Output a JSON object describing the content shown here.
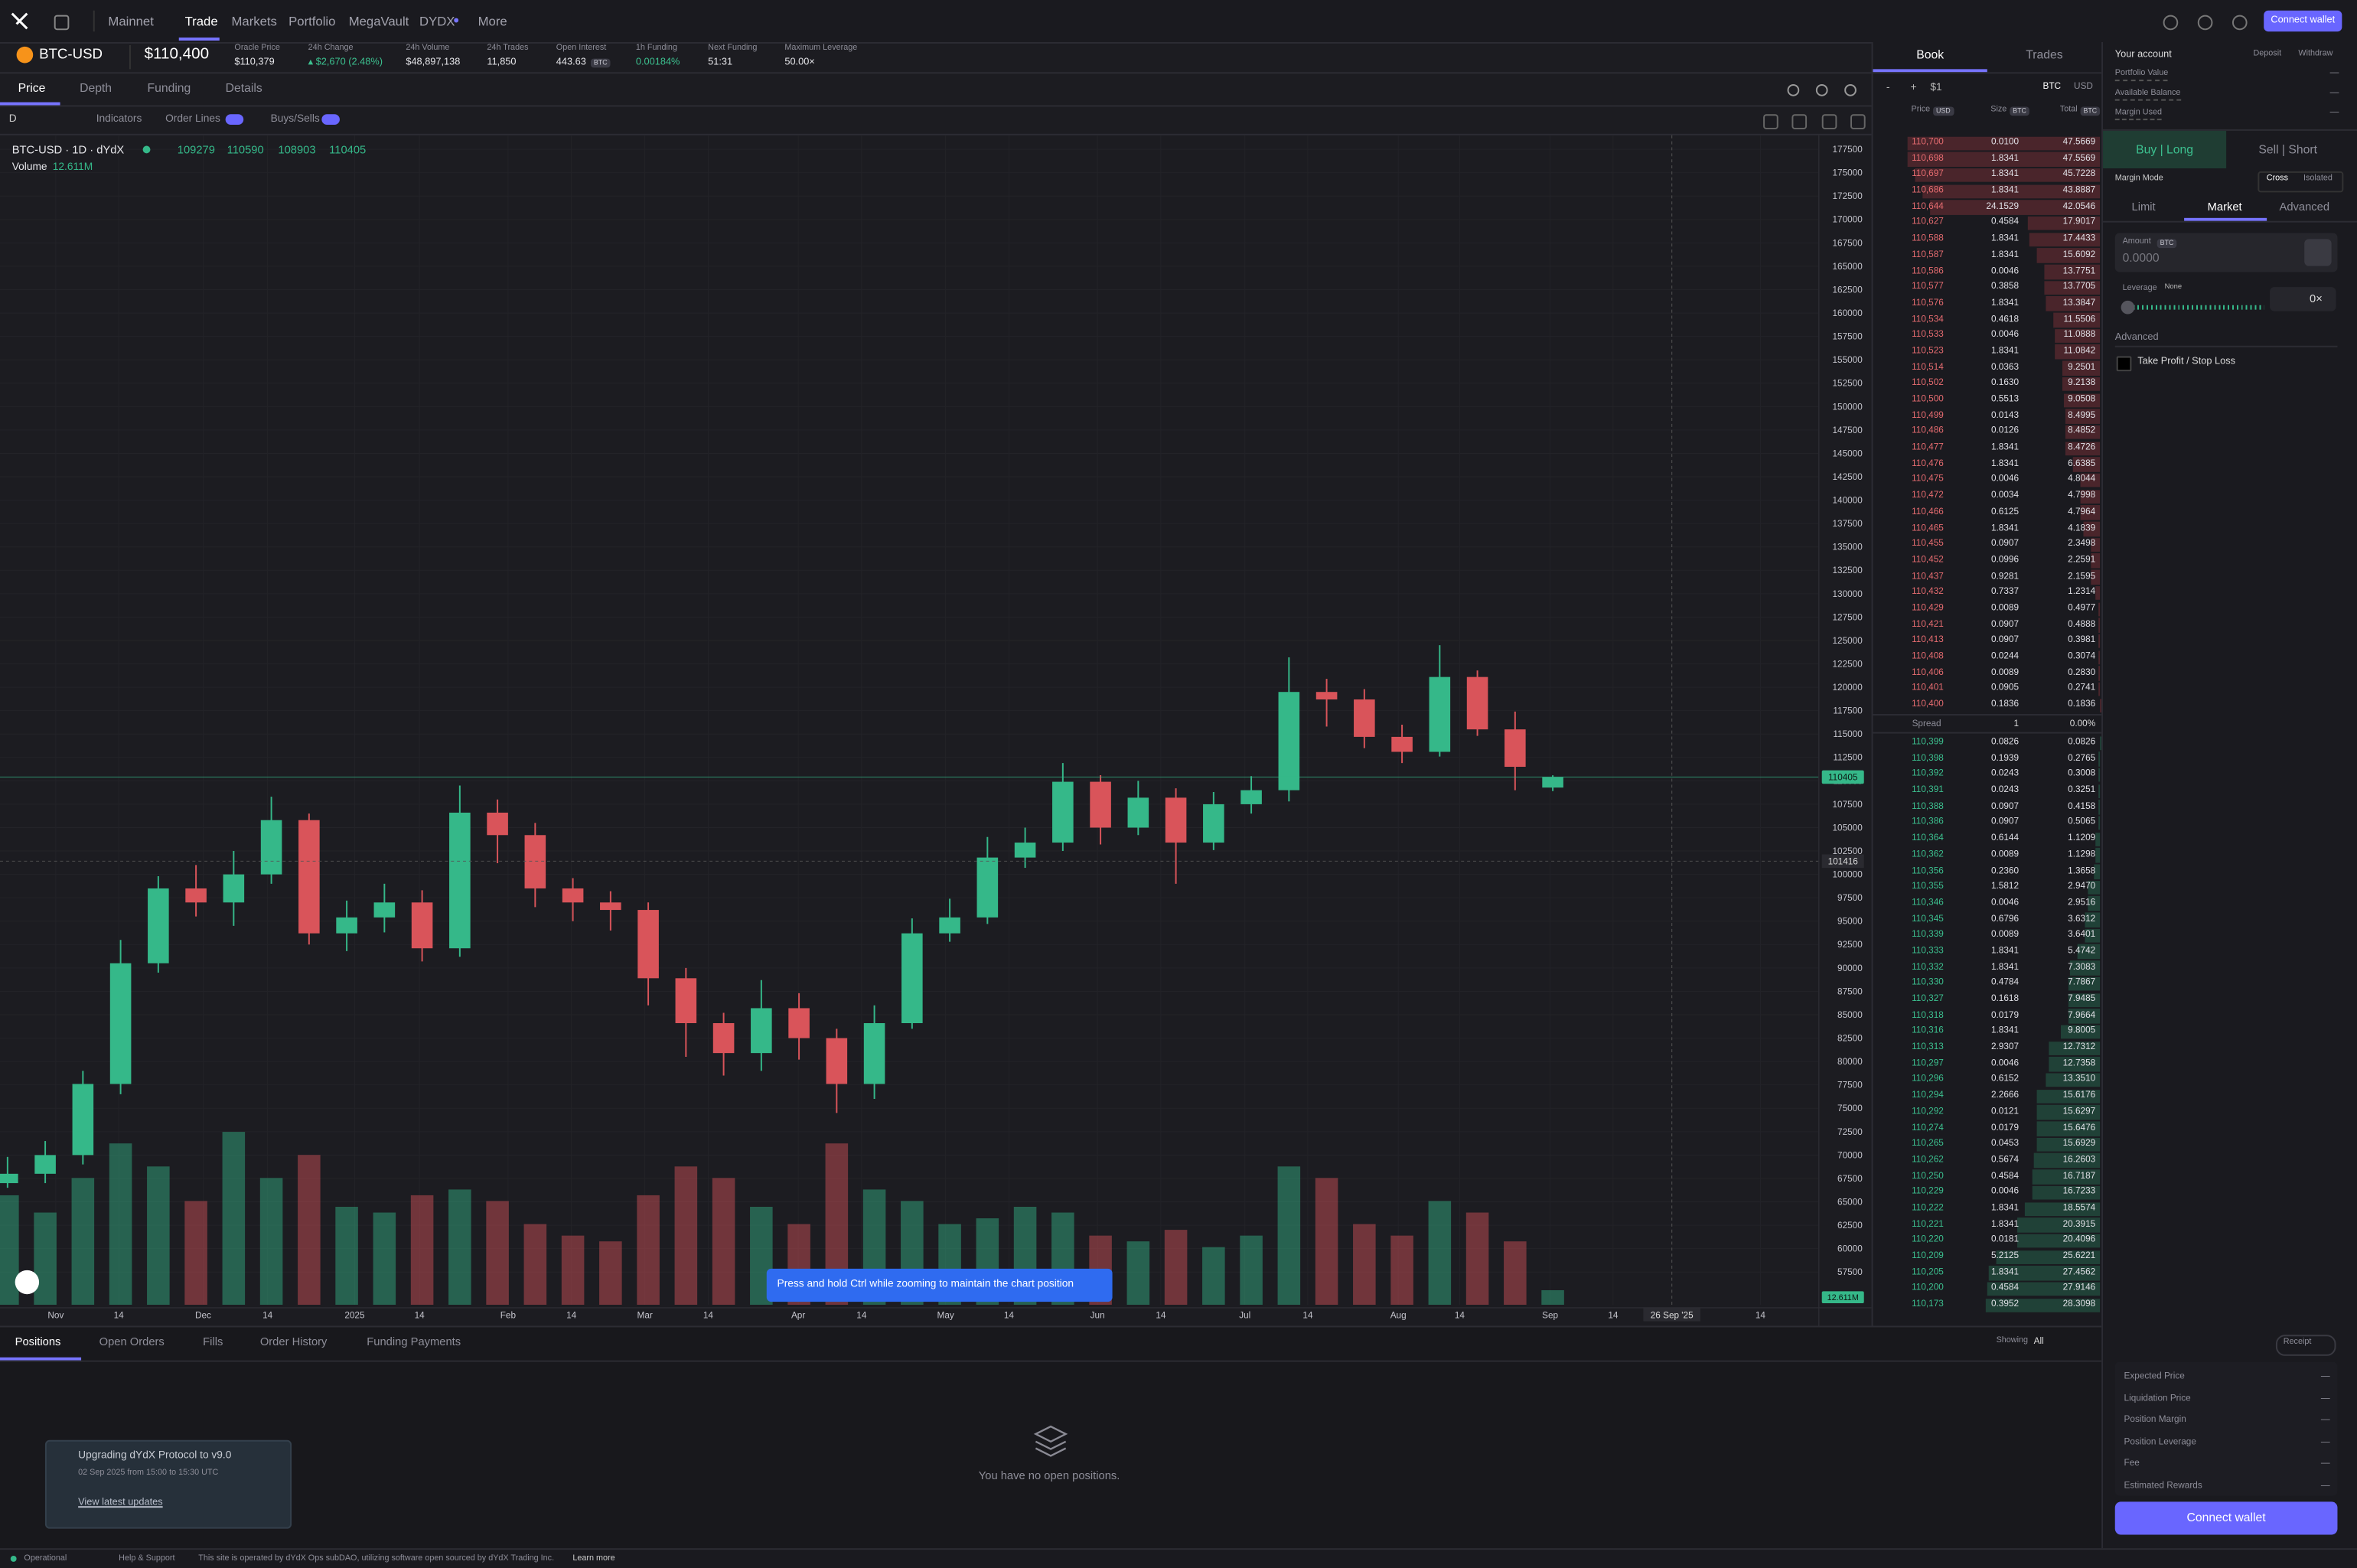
{
  "nav": {
    "items": [
      "Mainnet",
      "Trade",
      "Markets",
      "Portfolio",
      "MegaVault",
      "DYDX",
      "More"
    ],
    "connect": "Connect wallet"
  },
  "market": {
    "symbol": "BTC-USD",
    "price": "$110,400",
    "stats": [
      {
        "label": "Oracle Price",
        "value": "$110,379"
      },
      {
        "label": "24h Change",
        "value": "▴ $2,670 (2.48%)"
      },
      {
        "label": "24h Volume",
        "value": "$48,897,138"
      },
      {
        "label": "24h Trades",
        "value": "11,850"
      },
      {
        "label": "Open Interest",
        "value": "443.63"
      },
      {
        "label": "1h Funding",
        "value": "0.00184%"
      },
      {
        "label": "Next Funding",
        "value": "51:31"
      },
      {
        "label": "Maximum Leverage",
        "value": "50.00×"
      }
    ],
    "open_interest_unit": "BTC"
  },
  "chart_tabs": [
    "Price",
    "Depth",
    "Funding",
    "Details"
  ],
  "toolbar": {
    "interval": "D",
    "indicators": "Indicators",
    "order_lines": "Order Lines",
    "buys_sells": "Buys/Sells"
  },
  "chart_data": {
    "type": "candlestick",
    "title": "BTC-USD · 1D · dYdX",
    "open": [
      67000,
      68000,
      70000,
      77600,
      90500,
      98500,
      97000,
      100000,
      105800,
      93700,
      95400,
      97000,
      92100,
      106600,
      104200,
      98500,
      97000,
      96200,
      88900,
      84100,
      80900,
      85700,
      82500,
      77600,
      84100,
      93700,
      95400,
      101800,
      103400,
      109900,
      105000,
      108200,
      103400,
      107500,
      109000,
      119500,
      118700,
      114700,
      113100,
      121100,
      115500,
      109279
    ],
    "high": [
      69800,
      71500,
      79000,
      93000,
      99800,
      101000,
      102500,
      108300,
      106500,
      97200,
      99000,
      98300,
      109500,
      108000,
      105500,
      99600,
      98200,
      97000,
      90000,
      85200,
      88700,
      87300,
      83500,
      86000,
      95300,
      97400,
      104000,
      105000,
      111900,
      110600,
      110000,
      109200,
      108800,
      110500,
      123200,
      120900,
      119800,
      116000,
      124500,
      121800,
      117400,
      110590
    ],
    "low": [
      66500,
      67000,
      69000,
      76500,
      89500,
      95500,
      94500,
      99000,
      92500,
      91800,
      93800,
      90700,
      91200,
      101200,
      96500,
      95000,
      94000,
      86000,
      80500,
      78500,
      79000,
      80200,
      74500,
      76000,
      83500,
      92800,
      94700,
      100700,
      102500,
      103200,
      104200,
      99000,
      102600,
      106500,
      107800,
      115800,
      113500,
      111900,
      112600,
      114800,
      109000,
      108903
    ],
    "close": [
      68000,
      70000,
      77600,
      90500,
      98500,
      97000,
      100000,
      105800,
      93700,
      95400,
      97000,
      92100,
      106600,
      104200,
      98500,
      97000,
      96200,
      88900,
      84100,
      80900,
      85700,
      82500,
      77600,
      84100,
      93700,
      95400,
      101800,
      103400,
      109900,
      105000,
      108200,
      103400,
      107500,
      109000,
      119500,
      118700,
      114700,
      113100,
      121100,
      115500,
      111500,
      110405
    ],
    "volume": [
      95,
      80,
      110,
      140,
      120,
      90,
      150,
      110,
      130,
      85,
      80,
      95,
      100,
      90,
      70,
      60,
      55,
      95,
      120,
      110,
      85,
      70,
      140,
      100,
      90,
      70,
      75,
      85,
      80,
      60,
      55,
      65,
      50,
      60,
      120,
      110,
      70,
      60,
      90,
      80,
      55,
      12.611
    ],
    "volume_legend": {
      "label": "Volume",
      "value": "12.611M"
    },
    "up_color": "#35b889",
    "down_color": "#d9545a",
    "grid": true,
    "ylim": [
      54000,
      179000
    ],
    "yticks": [
      177500,
      175000,
      172500,
      170000,
      167500,
      165000,
      162500,
      160000,
      157500,
      155000,
      152500,
      150000,
      147500,
      145000,
      142500,
      140000,
      137500,
      135000,
      132500,
      130000,
      127500,
      125000,
      122500,
      120000,
      117500,
      115000,
      112500,
      110000,
      107500,
      105000,
      102500,
      100000,
      97500,
      95000,
      92500,
      90000,
      87500,
      85000,
      82500,
      80000,
      77500,
      75000,
      72500,
      70000,
      67500,
      65000,
      62500,
      60000,
      57500
    ],
    "xlim": [
      -0.2,
      48.06
    ],
    "xticks": [
      {
        "value": 1.28,
        "label": "Nov"
      },
      {
        "value": 2.95,
        "label": "14"
      },
      {
        "value": 5.19,
        "label": "Dec"
      },
      {
        "value": 6.9,
        "label": "14"
      },
      {
        "value": 9.21,
        "label": "2025"
      },
      {
        "value": 10.93,
        "label": "14"
      },
      {
        "value": 13.28,
        "label": "Feb"
      },
      {
        "value": 14.96,
        "label": "14"
      },
      {
        "value": 16.91,
        "label": "Mar"
      },
      {
        "value": 18.59,
        "label": "14"
      },
      {
        "value": 20.98,
        "label": "Apr"
      },
      {
        "value": 22.66,
        "label": "14"
      },
      {
        "value": 24.89,
        "label": "May"
      },
      {
        "value": 26.57,
        "label": "14"
      },
      {
        "value": 28.92,
        "label": "Jun"
      },
      {
        "value": 30.6,
        "label": "14"
      },
      {
        "value": 32.83,
        "label": "Jul"
      },
      {
        "value": 34.5,
        "label": "14"
      },
      {
        "value": 36.9,
        "label": "Aug"
      },
      {
        "value": 38.53,
        "label": "14"
      },
      {
        "value": 40.93,
        "label": "Sep"
      },
      {
        "value": 42.6,
        "label": "14"
      },
      {
        "value": 46.51,
        "label": "14"
      }
    ],
    "crosshair": 101416,
    "crosshair_x": {
      "value": 44.16,
      "label": "26 Sep '25"
    }
  },
  "toast": "Press and hold Ctrl while zooming to maintain the chart position",
  "positions": {
    "tabs": [
      "Positions",
      "Open Orders",
      "Fills",
      "Order History",
      "Funding Payments"
    ],
    "showing": "Showing",
    "filter": "All",
    "empty": "You have no open positions."
  },
  "notice": {
    "title": "Upgrading dYdX Protocol to v9.0",
    "time": "02 Sep 2025 from 15:00 to 15:30 UTC",
    "link": "View latest updates"
  },
  "footer": {
    "status": "Operational",
    "help": "Help & Support",
    "text": "This site is operated by dYdX Ops subDAO, utilizing software open sourced by dYdX Trading Inc.",
    "link": "Learn more"
  },
  "book": {
    "tabs": [
      "Book",
      "Trades"
    ],
    "controls": [
      "-",
      "+",
      "$1"
    ],
    "units": [
      "BTC",
      "USD"
    ],
    "headers": [
      {
        "label": "Price",
        "unit": "USD"
      },
      {
        "label": "Size",
        "unit": "BTC"
      },
      {
        "label": "Total",
        "unit": "BTC"
      }
    ],
    "asks": [
      [
        "110,700",
        "0.0100",
        "47.5669"
      ],
      [
        "110,698",
        "1.8341",
        "47.5569"
      ],
      [
        "110,697",
        "1.8341",
        "45.7228"
      ],
      [
        "110,686",
        "1.8341",
        "43.8887"
      ],
      [
        "110,644",
        "24.1529",
        "42.0546"
      ],
      [
        "110,627",
        "0.4584",
        "17.9017"
      ],
      [
        "110,588",
        "1.8341",
        "17.4433"
      ],
      [
        "110,587",
        "1.8341",
        "15.6092"
      ],
      [
        "110,586",
        "0.0046",
        "13.7751"
      ],
      [
        "110,577",
        "0.3858",
        "13.7705"
      ],
      [
        "110,576",
        "1.8341",
        "13.3847"
      ],
      [
        "110,534",
        "0.4618",
        "11.5506"
      ],
      [
        "110,533",
        "0.0046",
        "11.0888"
      ],
      [
        "110,523",
        "1.8341",
        "11.0842"
      ],
      [
        "110,514",
        "0.0363",
        "9.2501"
      ],
      [
        "110,502",
        "0.1630",
        "9.2138"
      ],
      [
        "110,500",
        "0.5513",
        "9.0508"
      ],
      [
        "110,499",
        "0.0143",
        "8.4995"
      ],
      [
        "110,486",
        "0.0126",
        "8.4852"
      ],
      [
        "110,477",
        "1.8341",
        "8.4726"
      ],
      [
        "110,476",
        "1.8341",
        "6.6385"
      ],
      [
        "110,475",
        "0.0046",
        "4.8044"
      ],
      [
        "110,472",
        "0.0034",
        "4.7998"
      ],
      [
        "110,466",
        "0.6125",
        "4.7964"
      ],
      [
        "110,465",
        "1.8341",
        "4.1839"
      ],
      [
        "110,455",
        "0.0907",
        "2.3498"
      ],
      [
        "110,452",
        "0.0996",
        "2.2591"
      ],
      [
        "110,437",
        "0.9281",
        "2.1595"
      ],
      [
        "110,432",
        "0.7337",
        "1.2314"
      ],
      [
        "110,429",
        "0.0089",
        "0.4977"
      ],
      [
        "110,421",
        "0.0907",
        "0.4888"
      ],
      [
        "110,413",
        "0.0907",
        "0.3981"
      ],
      [
        "110,408",
        "0.0244",
        "0.3074"
      ],
      [
        "110,406",
        "0.0089",
        "0.2830"
      ],
      [
        "110,401",
        "0.0905",
        "0.2741"
      ],
      [
        "110,400",
        "0.1836",
        "0.1836"
      ]
    ],
    "spread": [
      "Spread",
      "1",
      "0.00%"
    ],
    "bids": [
      [
        "110,399",
        "0.0826",
        "0.0826"
      ],
      [
        "110,398",
        "0.1939",
        "0.2765"
      ],
      [
        "110,392",
        "0.0243",
        "0.3008"
      ],
      [
        "110,391",
        "0.0243",
        "0.3251"
      ],
      [
        "110,388",
        "0.0907",
        "0.4158"
      ],
      [
        "110,386",
        "0.0907",
        "0.5065"
      ],
      [
        "110,364",
        "0.6144",
        "1.1209"
      ],
      [
        "110,362",
        "0.0089",
        "1.1298"
      ],
      [
        "110,356",
        "0.2360",
        "1.3658"
      ],
      [
        "110,355",
        "1.5812",
        "2.9470"
      ],
      [
        "110,346",
        "0.0046",
        "2.9516"
      ],
      [
        "110,345",
        "0.6796",
        "3.6312"
      ],
      [
        "110,339",
        "0.0089",
        "3.6401"
      ],
      [
        "110,333",
        "1.8341",
        "5.4742"
      ],
      [
        "110,332",
        "1.8341",
        "7.3083"
      ],
      [
        "110,330",
        "0.4784",
        "7.7867"
      ],
      [
        "110,327",
        "0.1618",
        "7.9485"
      ],
      [
        "110,318",
        "0.0179",
        "7.9664"
      ],
      [
        "110,316",
        "1.8341",
        "9.8005"
      ],
      [
        "110,313",
        "2.9307",
        "12.7312"
      ],
      [
        "110,297",
        "0.0046",
        "12.7358"
      ],
      [
        "110,296",
        "0.6152",
        "13.3510"
      ],
      [
        "110,294",
        "2.2666",
        "15.6176"
      ],
      [
        "110,292",
        "0.0121",
        "15.6297"
      ],
      [
        "110,274",
        "0.0179",
        "15.6476"
      ],
      [
        "110,265",
        "0.0453",
        "15.6929"
      ],
      [
        "110,262",
        "0.5674",
        "16.2603"
      ],
      [
        "110,250",
        "0.4584",
        "16.7187"
      ],
      [
        "110,229",
        "0.0046",
        "16.7233"
      ],
      [
        "110,222",
        "1.8341",
        "18.5574"
      ],
      [
        "110,221",
        "1.8341",
        "20.3915"
      ],
      [
        "110,220",
        "0.0181",
        "20.4096"
      ],
      [
        "110,209",
        "5.2125",
        "25.6221"
      ],
      [
        "110,205",
        "1.8341",
        "27.4562"
      ],
      [
        "110,200",
        "0.4584",
        "27.9146"
      ],
      [
        "110,173",
        "0.3952",
        "28.3098"
      ]
    ]
  },
  "account": {
    "title": "Your account",
    "actions": [
      "Deposit",
      "Withdraw"
    ],
    "rows": [
      {
        "label": "Portfolio Value",
        "value": "—"
      },
      {
        "label": "Available Balance",
        "value": "—"
      },
      {
        "label": "Margin Used",
        "value": "—"
      }
    ]
  },
  "trade": {
    "sides": [
      "Buy | Long",
      "Sell | Short"
    ],
    "margin_mode": "Margin Mode",
    "modes": [
      "Cross",
      "Isolated"
    ],
    "order_types": [
      "Limit",
      "Market",
      "Advanced"
    ],
    "amount": {
      "label": "Amount",
      "unit": "BTC",
      "placeholder": "0.0000"
    },
    "leverage": {
      "label": "Leverage",
      "tag": "None",
      "value": "0×"
    },
    "advanced": "Advanced",
    "tpsl": "Take Profit / Stop Loss",
    "receipt": "Receipt",
    "summary": [
      {
        "label": "Expected Price",
        "value": "—"
      },
      {
        "label": "Liquidation Price",
        "value": "—"
      },
      {
        "label": "Position Margin",
        "value": "—"
      },
      {
        "label": "Position Leverage",
        "value": "—"
      },
      {
        "label": "Fee",
        "value": "—"
      },
      {
        "label": "Estimated Rewards",
        "value": "—"
      }
    ],
    "connect": "Connect wallet"
  }
}
